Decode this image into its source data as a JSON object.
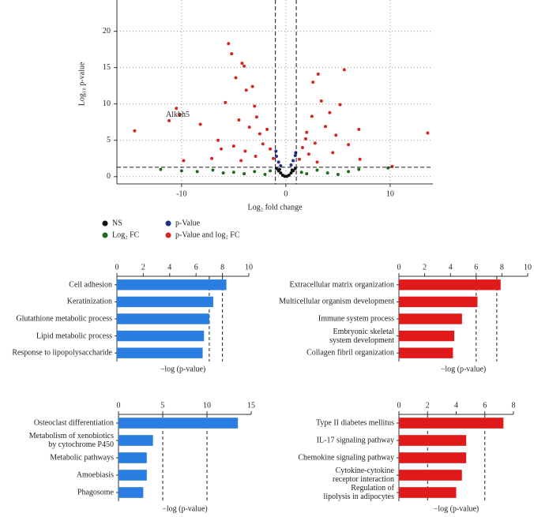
{
  "chart_data": [
    {
      "type": "volcano",
      "xlabel": "Log₂ fold change",
      "ylabel": "Log₁₀ p-value",
      "xlim": [
        -16.2,
        14.1
      ],
      "ylim": [
        -1,
        24.3
      ],
      "xticks": [
        -10,
        0,
        10
      ],
      "yticks": [
        0,
        5,
        10,
        15,
        20
      ],
      "grid": true,
      "vlines": [
        -1,
        1
      ],
      "hlines": [
        1.3
      ],
      "annotation": {
        "text": "Alkbh5",
        "x": -11.5,
        "y": 7.7
      },
      "series": [
        {
          "name": "NS",
          "color": "#111111",
          "x": [
            -0.9,
            -0.7,
            -0.5,
            -0.3,
            -0.1,
            0.1,
            0.3,
            0.5,
            0.7,
            0.9,
            -0.6,
            0.6
          ],
          "y": [
            1.1,
            0.8,
            0.5,
            0.2,
            0.05,
            0.05,
            0.2,
            0.5,
            0.8,
            1.1,
            1.0,
            0.9
          ]
        },
        {
          "name": "Log₂ FC",
          "color": "#1e6b1e",
          "x": [
            -12,
            -10,
            -8.5,
            -7,
            -6,
            -5,
            -4,
            -3,
            -2,
            -1.5,
            1.5,
            2,
            3,
            4,
            5,
            6,
            7,
            9.8
          ],
          "y": [
            1.0,
            0.8,
            0.7,
            0.9,
            0.5,
            0.6,
            0.4,
            0.7,
            0.3,
            0.8,
            0.6,
            0.4,
            0.9,
            0.5,
            0.3,
            0.7,
            1.0,
            1.2
          ]
        },
        {
          "name": "p-Value",
          "color": "#1f2f8c",
          "x": [
            -0.95,
            -0.9,
            -0.7,
            -0.5,
            0.5,
            0.7,
            0.9,
            0.95
          ],
          "y": [
            3.5,
            2.8,
            2.0,
            1.5,
            1.6,
            2.2,
            2.9,
            3.3
          ]
        },
        {
          "name": "p-Value and log₂ FC",
          "color": "#d7261e",
          "x": [
            -14.5,
            -11.2,
            -10.5,
            -10.2,
            -9.8,
            -8.2,
            -7.1,
            -6.5,
            -5.5,
            -5.8,
            -5.2,
            -4.8,
            -4.2,
            -4.0,
            -3.8,
            -3.2,
            -3.0,
            -4.5,
            -3.5,
            -2.8,
            -2.5,
            -2.2,
            -1.8,
            -1.5,
            -1.2,
            -5.0,
            -3.9,
            -2.9,
            -6.2,
            -4.3,
            1.3,
            1.6,
            2.0,
            2.5,
            2.6,
            3.1,
            3.4,
            3.8,
            4.2,
            4.8,
            5.2,
            5.6,
            6.0,
            7.0,
            7.1,
            2.2,
            3.0,
            4.5,
            10.2,
            13.6,
            1.9,
            2.8
          ],
          "y": [
            6.3,
            7.7,
            9.4,
            8.5,
            2.2,
            7.2,
            2.5,
            5.0,
            18.3,
            10.2,
            16.9,
            13.6,
            15.6,
            15.2,
            11.9,
            12.4,
            9.7,
            7.8,
            6.8,
            8.2,
            5.9,
            4.5,
            6.5,
            3.8,
            2.5,
            4.2,
            3.5,
            2.8,
            3.8,
            2.2,
            2.4,
            4.0,
            6.1,
            8.3,
            13.0,
            14.1,
            10.4,
            6.9,
            8.8,
            5.7,
            9.9,
            14.7,
            4.4,
            6.5,
            2.4,
            3.1,
            2.0,
            3.3,
            1.4,
            6.0,
            5.2,
            4.6
          ]
        }
      ]
    },
    {
      "type": "barh",
      "xlabel": "−log (p-value)",
      "color": "#2a7de1",
      "xlim": [
        0,
        10
      ],
      "xticks": [
        0,
        2,
        4,
        6,
        8,
        10
      ],
      "reflines": [
        7,
        8
      ],
      "categories": [
        "Cell adhesion",
        "Keratinization",
        "Glutathione metabolic process",
        "Lipid metabolic process",
        "Response to lipopolysaccharide"
      ],
      "values": [
        8.3,
        7.3,
        7.0,
        6.6,
        6.5
      ]
    },
    {
      "type": "barh",
      "xlabel": "−log (p-value)",
      "color": "#e0191b",
      "xlim": [
        0,
        10
      ],
      "xticks": [
        0,
        2,
        4,
        6,
        8,
        10
      ],
      "reflines": [
        6,
        7.6
      ],
      "categories": [
        "Extracellular matrix organization",
        "Multicellular organism development",
        "Immune system process",
        "Embryonic skeletal\nsystem development",
        "Collagen fibril organization"
      ],
      "values": [
        7.9,
        6.1,
        4.9,
        4.3,
        4.2
      ]
    },
    {
      "type": "barh",
      "xlabel": "−log (p-value)",
      "color": "#2a7de1",
      "xlim": [
        0,
        15
      ],
      "xticks": [
        0,
        5,
        10,
        15
      ],
      "reflines": [
        5,
        10
      ],
      "categories": [
        "Osteoclast differentiation",
        "Metabolism of xenobiotics\nby cytochrome P450",
        "Metabolic pathways",
        "Amoebiasis",
        "Phagosome"
      ],
      "values": [
        13.5,
        3.9,
        3.2,
        3.2,
        2.8
      ]
    },
    {
      "type": "barh",
      "xlabel": "−log (p-value)",
      "color": "#e0191b",
      "xlim": [
        0,
        8
      ],
      "xticks": [
        0,
        2,
        4,
        6,
        8
      ],
      "reflines": [
        2,
        6
      ],
      "categories": [
        "Type II diabetes mellitus",
        "IL-17 signaling pathway",
        "Chemokine signaling pathway",
        "Cytokine-cytokine\nreceptor interaction",
        "Regulation of\nlipolysis in adipocytes"
      ],
      "values": [
        7.3,
        4.7,
        4.7,
        4.4,
        4.0
      ]
    }
  ]
}
